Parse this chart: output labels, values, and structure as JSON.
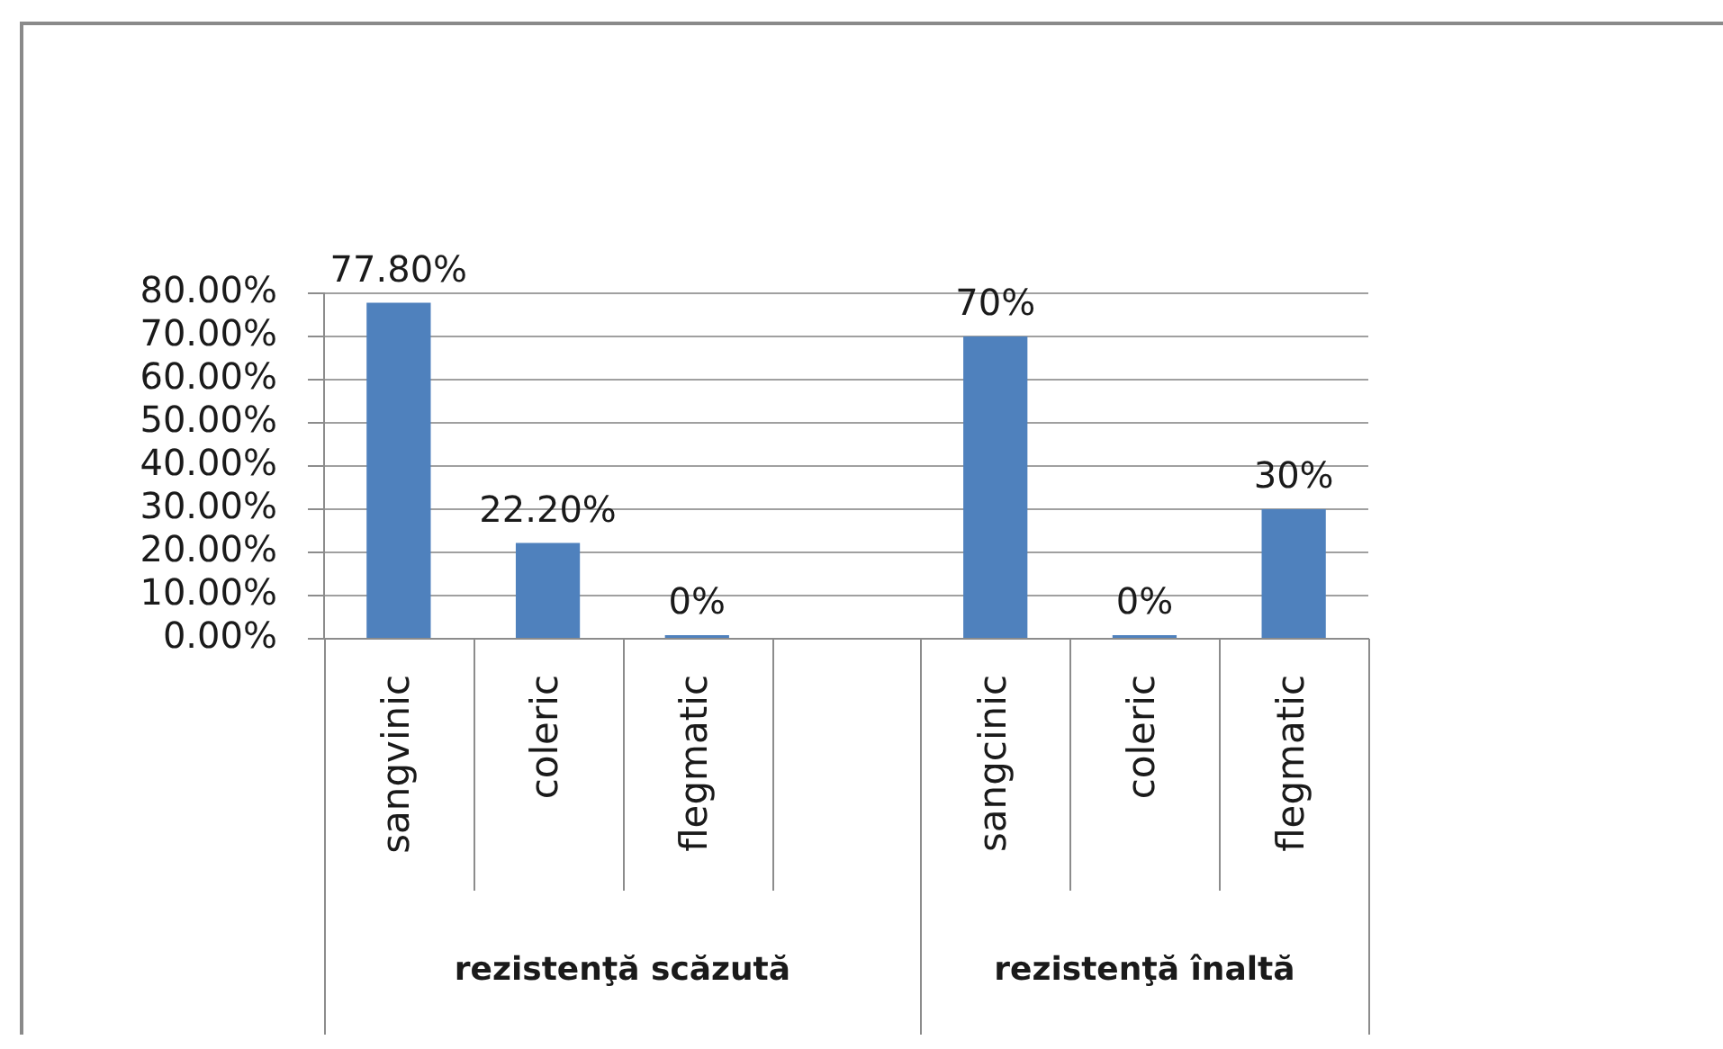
{
  "chart_data": {
    "type": "bar",
    "categories": [
      "sangvinic",
      "coleric",
      "flegmatic",
      null,
      "sangcinic",
      "coleric",
      "flegmatic"
    ],
    "values": [
      77.8,
      22.2,
      0,
      null,
      70,
      0,
      30
    ],
    "value_labels": [
      "77.80%",
      "22.20%",
      "0%",
      null,
      "70%",
      "0%",
      "30%"
    ],
    "color": "#4f81bd",
    "ylim": [
      0,
      80
    ],
    "yticks": [
      {
        "value": 0,
        "label": "0.00%"
      },
      {
        "value": 10,
        "label": "10.00%"
      },
      {
        "value": 20,
        "label": "20.00%"
      },
      {
        "value": 30,
        "label": "30.00%"
      },
      {
        "value": 40,
        "label": "40.00%"
      },
      {
        "value": 50,
        "label": "50.00%"
      },
      {
        "value": 60,
        "label": "60.00%"
      },
      {
        "value": 70,
        "label": "70.00%"
      },
      {
        "value": 80,
        "label": "80.00%"
      }
    ],
    "grid": "y",
    "annotations": [
      "rezistenţă scăzută",
      "rezistenţă înaltă"
    ]
  }
}
